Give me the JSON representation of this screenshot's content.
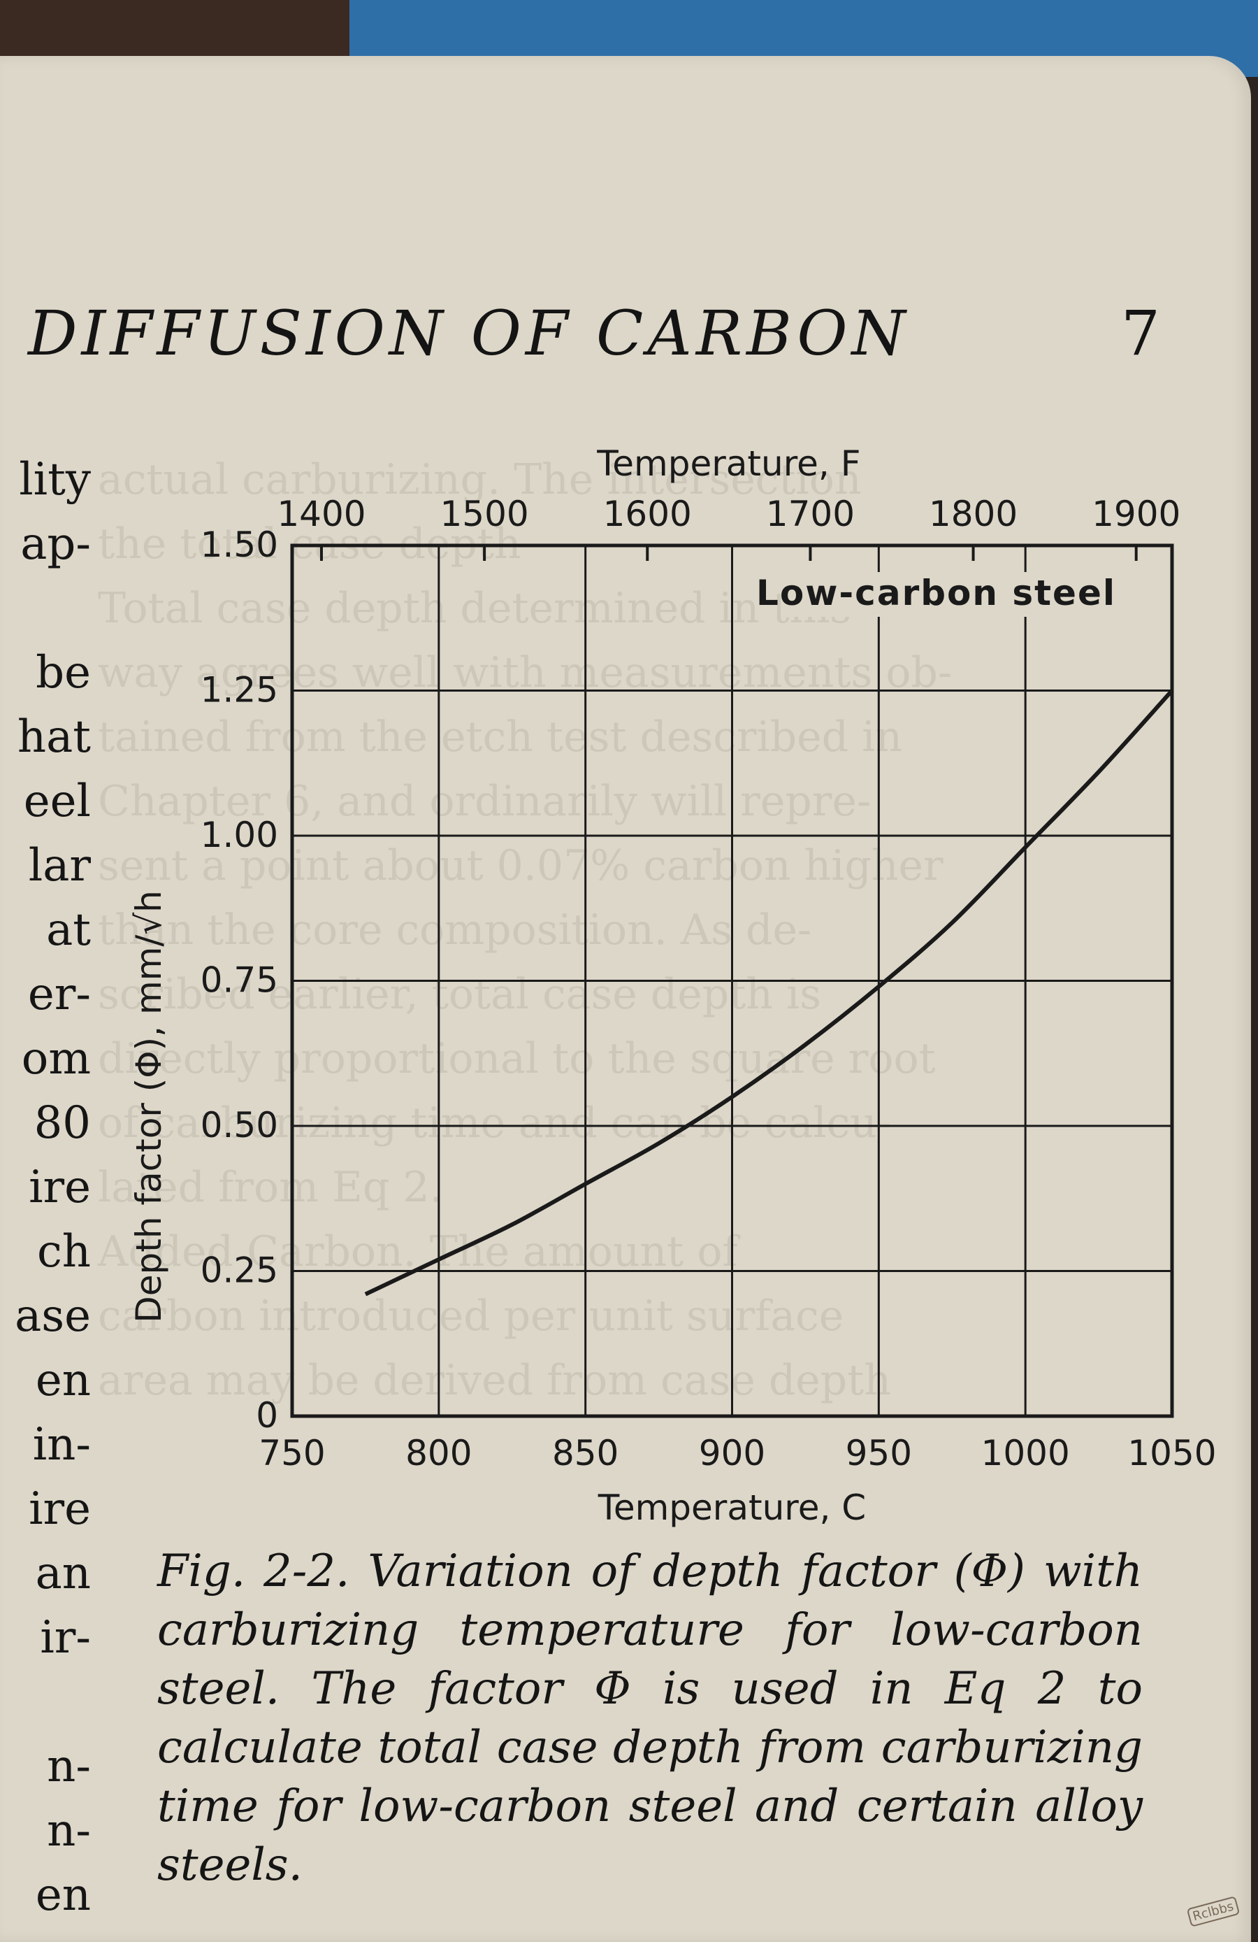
{
  "header": {
    "running_head": "DIFFUSION OF CARBON",
    "page_number": "7"
  },
  "margin_fragments": [
    "lity",
    "ap-",
    "",
    "be",
    "hat",
    "eel",
    "lar",
    "at",
    "er-",
    "om",
    "80",
    "ire",
    "ch",
    "ase",
    "en",
    "in-",
    "ire",
    "an",
    "ir-",
    "",
    "n-",
    "n-",
    "en"
  ],
  "bleed_through": [
    "actual carburizing. The intersection",
    "the total case depth",
    "Total case depth determined in this",
    "way agrees well with measurements ob-",
    "tained from the etch test described in",
    "Chapter 6, and ordinarily will repre-",
    "sent a point about 0.07% carbon higher",
    "than the core composition. As de-",
    "scribed earlier, total case depth is",
    "directly proportional to the square root",
    "of carburizing time and can be calcu-",
    "lated from Eq 2.",
    "Added Carbon. The amount of",
    "carbon introduced per unit surface",
    "area may be derived from case depth"
  ],
  "caption": "Fig. 2-2. Variation of depth factor (Φ) with carburizing temperature for low-carbon steel. The factor Φ is used in Eq 2 to calculate total case depth from carburizing time for low-carbon steel and certain alloy steels.",
  "watermark": "Rclbbs",
  "chart_data": {
    "type": "line",
    "annotation": "Low-carbon steel",
    "xlabel": "Temperature, C",
    "x2label": "Temperature, F",
    "ylabel": "Depth factor (Φ), mm/√h",
    "xlim": [
      750,
      1050
    ],
    "ylim": [
      0,
      1.5
    ],
    "x_ticks": [
      "750",
      "800",
      "850",
      "900",
      "950",
      "1000",
      "1050"
    ],
    "x_tick_values": [
      750,
      800,
      850,
      900,
      950,
      1000,
      1050
    ],
    "x2_ticks": [
      "1400",
      "1500",
      "1600",
      "1700",
      "1800",
      "1900"
    ],
    "x2_tick_values_F": [
      1400,
      1500,
      1600,
      1700,
      1800,
      1900
    ],
    "y_ticks": [
      "0",
      "0.25",
      "0.50",
      "0.75",
      "1.00",
      "1.25",
      "1.50"
    ],
    "y_tick_values": [
      0,
      0.25,
      0.5,
      0.75,
      1.0,
      1.25,
      1.5
    ],
    "grid": true,
    "series": [
      {
        "x": [
          775,
          800,
          825,
          850,
          875,
          900,
          925,
          950,
          975,
          1000,
          1025,
          1050
        ],
        "y": [
          0.21,
          0.27,
          0.33,
          0.4,
          0.47,
          0.55,
          0.64,
          0.74,
          0.85,
          0.98,
          1.11,
          1.25
        ]
      }
    ],
    "colors": {
      "line": "#1a1a1a",
      "grid": "#1a1a1a",
      "text": "#1a1a1a"
    }
  }
}
